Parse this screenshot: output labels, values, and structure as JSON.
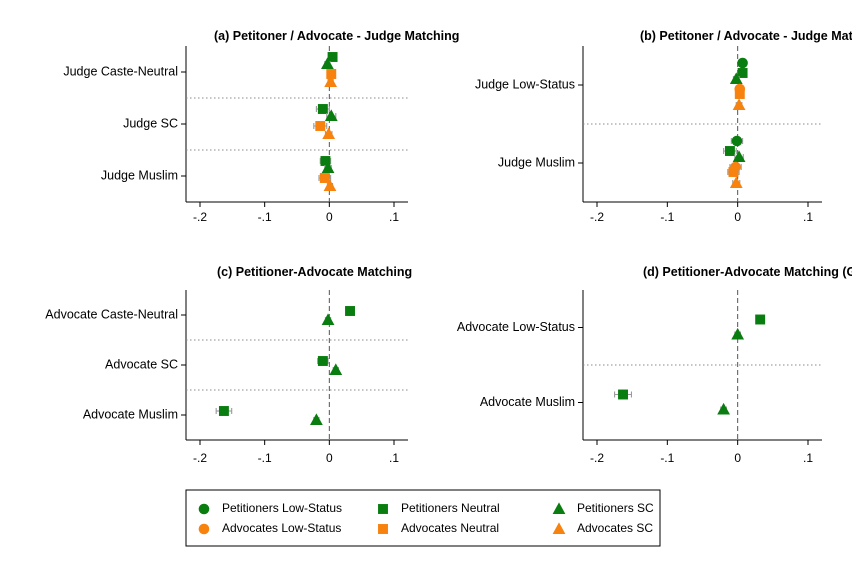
{
  "colors": {
    "petitioners": "#0a7d10",
    "advocates": "#f7820e",
    "zero_line": "#555555",
    "separator": "#888888",
    "ci": "#9a9a9a"
  },
  "legend": {
    "placement": "bottom-center",
    "entries": [
      {
        "label": "Petitioners Low-Status",
        "group": "petitioners",
        "shape": "circle"
      },
      {
        "label": "Petitioners Neutral",
        "group": "petitioners",
        "shape": "square"
      },
      {
        "label": "Petitioners SC",
        "group": "petitioners",
        "shape": "triangle"
      },
      {
        "label": "Advocates Low-Status",
        "group": "advocates",
        "shape": "circle"
      },
      {
        "label": "Advocates Neutral",
        "group": "advocates",
        "shape": "square"
      },
      {
        "label": "Advocates SC",
        "group": "advocates",
        "shape": "triangle"
      }
    ]
  },
  "chart_data": [
    {
      "type": "scatter",
      "title": "(a) Petitoner / Advocate - Judge Matching",
      "xlim": [
        -0.2,
        0.1
      ],
      "xticks": [
        -0.2,
        -0.1,
        0,
        0.1
      ],
      "xtick_labels": [
        "-.2",
        "-.1",
        "0",
        ".1"
      ],
      "categories": [
        "Judge Caste-Neutral",
        "Judge SC",
        "Judge Muslim"
      ],
      "points": [
        {
          "category": "Judge Caste-Neutral",
          "group": "petitioners",
          "shape": "square",
          "x": 0.005,
          "ci": [
            0.001,
            0.009
          ]
        },
        {
          "category": "Judge Caste-Neutral",
          "group": "petitioners",
          "shape": "triangle",
          "x": -0.003,
          "ci": [
            -0.007,
            0.001
          ]
        },
        {
          "category": "Judge Caste-Neutral",
          "group": "advocates",
          "shape": "square",
          "x": 0.003,
          "ci": [
            -0.001,
            0.007
          ]
        },
        {
          "category": "Judge Caste-Neutral",
          "group": "advocates",
          "shape": "triangle",
          "x": 0.002,
          "ci": [
            -0.002,
            0.006
          ]
        },
        {
          "category": "Judge SC",
          "group": "petitioners",
          "shape": "square",
          "x": -0.01,
          "ci": [
            -0.02,
            0.0
          ]
        },
        {
          "category": "Judge SC",
          "group": "petitioners",
          "shape": "triangle",
          "x": 0.003,
          "ci": [
            -0.004,
            0.01
          ]
        },
        {
          "category": "Judge SC",
          "group": "advocates",
          "shape": "square",
          "x": -0.014,
          "ci": [
            -0.024,
            -0.004
          ]
        },
        {
          "category": "Judge SC",
          "group": "advocates",
          "shape": "triangle",
          "x": -0.001,
          "ci": [
            -0.006,
            0.004
          ]
        },
        {
          "category": "Judge Muslim",
          "group": "petitioners",
          "shape": "square",
          "x": -0.006,
          "ci": [
            -0.014,
            0.002
          ]
        },
        {
          "category": "Judge Muslim",
          "group": "petitioners",
          "shape": "triangle",
          "x": -0.002,
          "ci": [
            -0.007,
            0.003
          ]
        },
        {
          "category": "Judge Muslim",
          "group": "advocates",
          "shape": "square",
          "x": -0.007,
          "ci": [
            -0.016,
            0.002
          ]
        },
        {
          "category": "Judge Muslim",
          "group": "advocates",
          "shape": "triangle",
          "x": 0.001,
          "ci": [
            -0.003,
            0.005
          ]
        }
      ]
    },
    {
      "type": "scatter",
      "title": "(b) Petitoner / Advocate - Judge Matching (Grouped)",
      "xlim": [
        -0.2,
        0.1
      ],
      "xticks": [
        -0.2,
        -0.1,
        0,
        0.1
      ],
      "xtick_labels": [
        "-.2",
        "-.1",
        "0",
        ".1"
      ],
      "categories": [
        "Judge Low-Status",
        "Judge Muslim"
      ],
      "points": [
        {
          "category": "Judge Low-Status",
          "group": "petitioners",
          "shape": "circle",
          "x": 0.007,
          "ci": [
            0.003,
            0.011
          ]
        },
        {
          "category": "Judge Low-Status",
          "group": "petitioners",
          "shape": "square",
          "x": 0.007,
          "ci": [
            0.003,
            0.011
          ]
        },
        {
          "category": "Judge Low-Status",
          "group": "petitioners",
          "shape": "triangle",
          "x": -0.002,
          "ci": [
            -0.006,
            0.002
          ]
        },
        {
          "category": "Judge Low-Status",
          "group": "advocates",
          "shape": "circle",
          "x": 0.003,
          "ci": [
            -0.001,
            0.007
          ]
        },
        {
          "category": "Judge Low-Status",
          "group": "advocates",
          "shape": "square",
          "x": 0.003,
          "ci": [
            -0.001,
            0.007
          ]
        },
        {
          "category": "Judge Low-Status",
          "group": "advocates",
          "shape": "triangle",
          "x": 0.002,
          "ci": [
            -0.002,
            0.006
          ]
        },
        {
          "category": "Judge Muslim",
          "group": "petitioners",
          "shape": "circle",
          "x": -0.001,
          "ci": [
            -0.009,
            0.007
          ]
        },
        {
          "category": "Judge Muslim",
          "group": "petitioners",
          "shape": "square",
          "x": -0.011,
          "ci": [
            -0.02,
            -0.002
          ]
        },
        {
          "category": "Judge Muslim",
          "group": "petitioners",
          "shape": "triangle",
          "x": 0.002,
          "ci": [
            -0.004,
            0.008
          ]
        },
        {
          "category": "Judge Muslim",
          "group": "advocates",
          "shape": "circle",
          "x": -0.003,
          "ci": [
            -0.011,
            0.005
          ]
        },
        {
          "category": "Judge Muslim",
          "group": "advocates",
          "shape": "square",
          "x": -0.006,
          "ci": [
            -0.014,
            0.002
          ]
        },
        {
          "category": "Judge Muslim",
          "group": "advocates",
          "shape": "triangle",
          "x": -0.002,
          "ci": [
            -0.007,
            0.003
          ]
        }
      ]
    },
    {
      "type": "scatter",
      "title": "(c) Petitioner-Advocate Matching",
      "xlim": [
        -0.2,
        0.1
      ],
      "xticks": [
        -0.2,
        -0.1,
        0,
        0.1
      ],
      "xtick_labels": [
        "-.2",
        "-.1",
        "0",
        ".1"
      ],
      "categories": [
        "Advocate Caste-Neutral",
        "Advocate SC",
        "Advocate Muslim"
      ],
      "points": [
        {
          "category": "Advocate Caste-Neutral",
          "group": "petitioners",
          "shape": "square",
          "x": 0.032,
          "ci": [
            0.028,
            0.036
          ]
        },
        {
          "category": "Advocate Caste-Neutral",
          "group": "petitioners",
          "shape": "triangle",
          "x": -0.002,
          "ci": [
            -0.006,
            0.002
          ]
        },
        {
          "category": "Advocate SC",
          "group": "petitioners",
          "shape": "square",
          "x": -0.01,
          "ci": [
            -0.018,
            -0.002
          ]
        },
        {
          "category": "Advocate SC",
          "group": "petitioners",
          "shape": "triangle",
          "x": 0.01,
          "ci": [
            0.006,
            0.014
          ]
        },
        {
          "category": "Advocate Muslim",
          "group": "petitioners",
          "shape": "square",
          "x": -0.163,
          "ci": [
            -0.175,
            -0.151
          ]
        },
        {
          "category": "Advocate Muslim",
          "group": "petitioners",
          "shape": "triangle",
          "x": -0.02,
          "ci": [
            -0.024,
            -0.016
          ]
        }
      ]
    },
    {
      "type": "scatter",
      "title": "(d) Petitioner-Advocate Matching (Grouped)",
      "xlim": [
        -0.2,
        0.1
      ],
      "xticks": [
        -0.2,
        -0.1,
        0,
        0.1
      ],
      "xtick_labels": [
        "-.2",
        "-.1",
        "0",
        ".1"
      ],
      "categories": [
        "Advocate Low-Status",
        "Advocate Muslim"
      ],
      "points": [
        {
          "category": "Advocate Low-Status",
          "group": "petitioners",
          "shape": "square",
          "x": 0.032,
          "ci": [
            0.028,
            0.036
          ]
        },
        {
          "category": "Advocate Low-Status",
          "group": "petitioners",
          "shape": "triangle",
          "x": 0.0,
          "ci": [
            -0.004,
            0.004
          ]
        },
        {
          "category": "Advocate Muslim",
          "group": "petitioners",
          "shape": "square",
          "x": -0.163,
          "ci": [
            -0.175,
            -0.151
          ]
        },
        {
          "category": "Advocate Muslim",
          "group": "petitioners",
          "shape": "triangle",
          "x": -0.02,
          "ci": [
            -0.024,
            -0.016
          ]
        }
      ]
    }
  ]
}
